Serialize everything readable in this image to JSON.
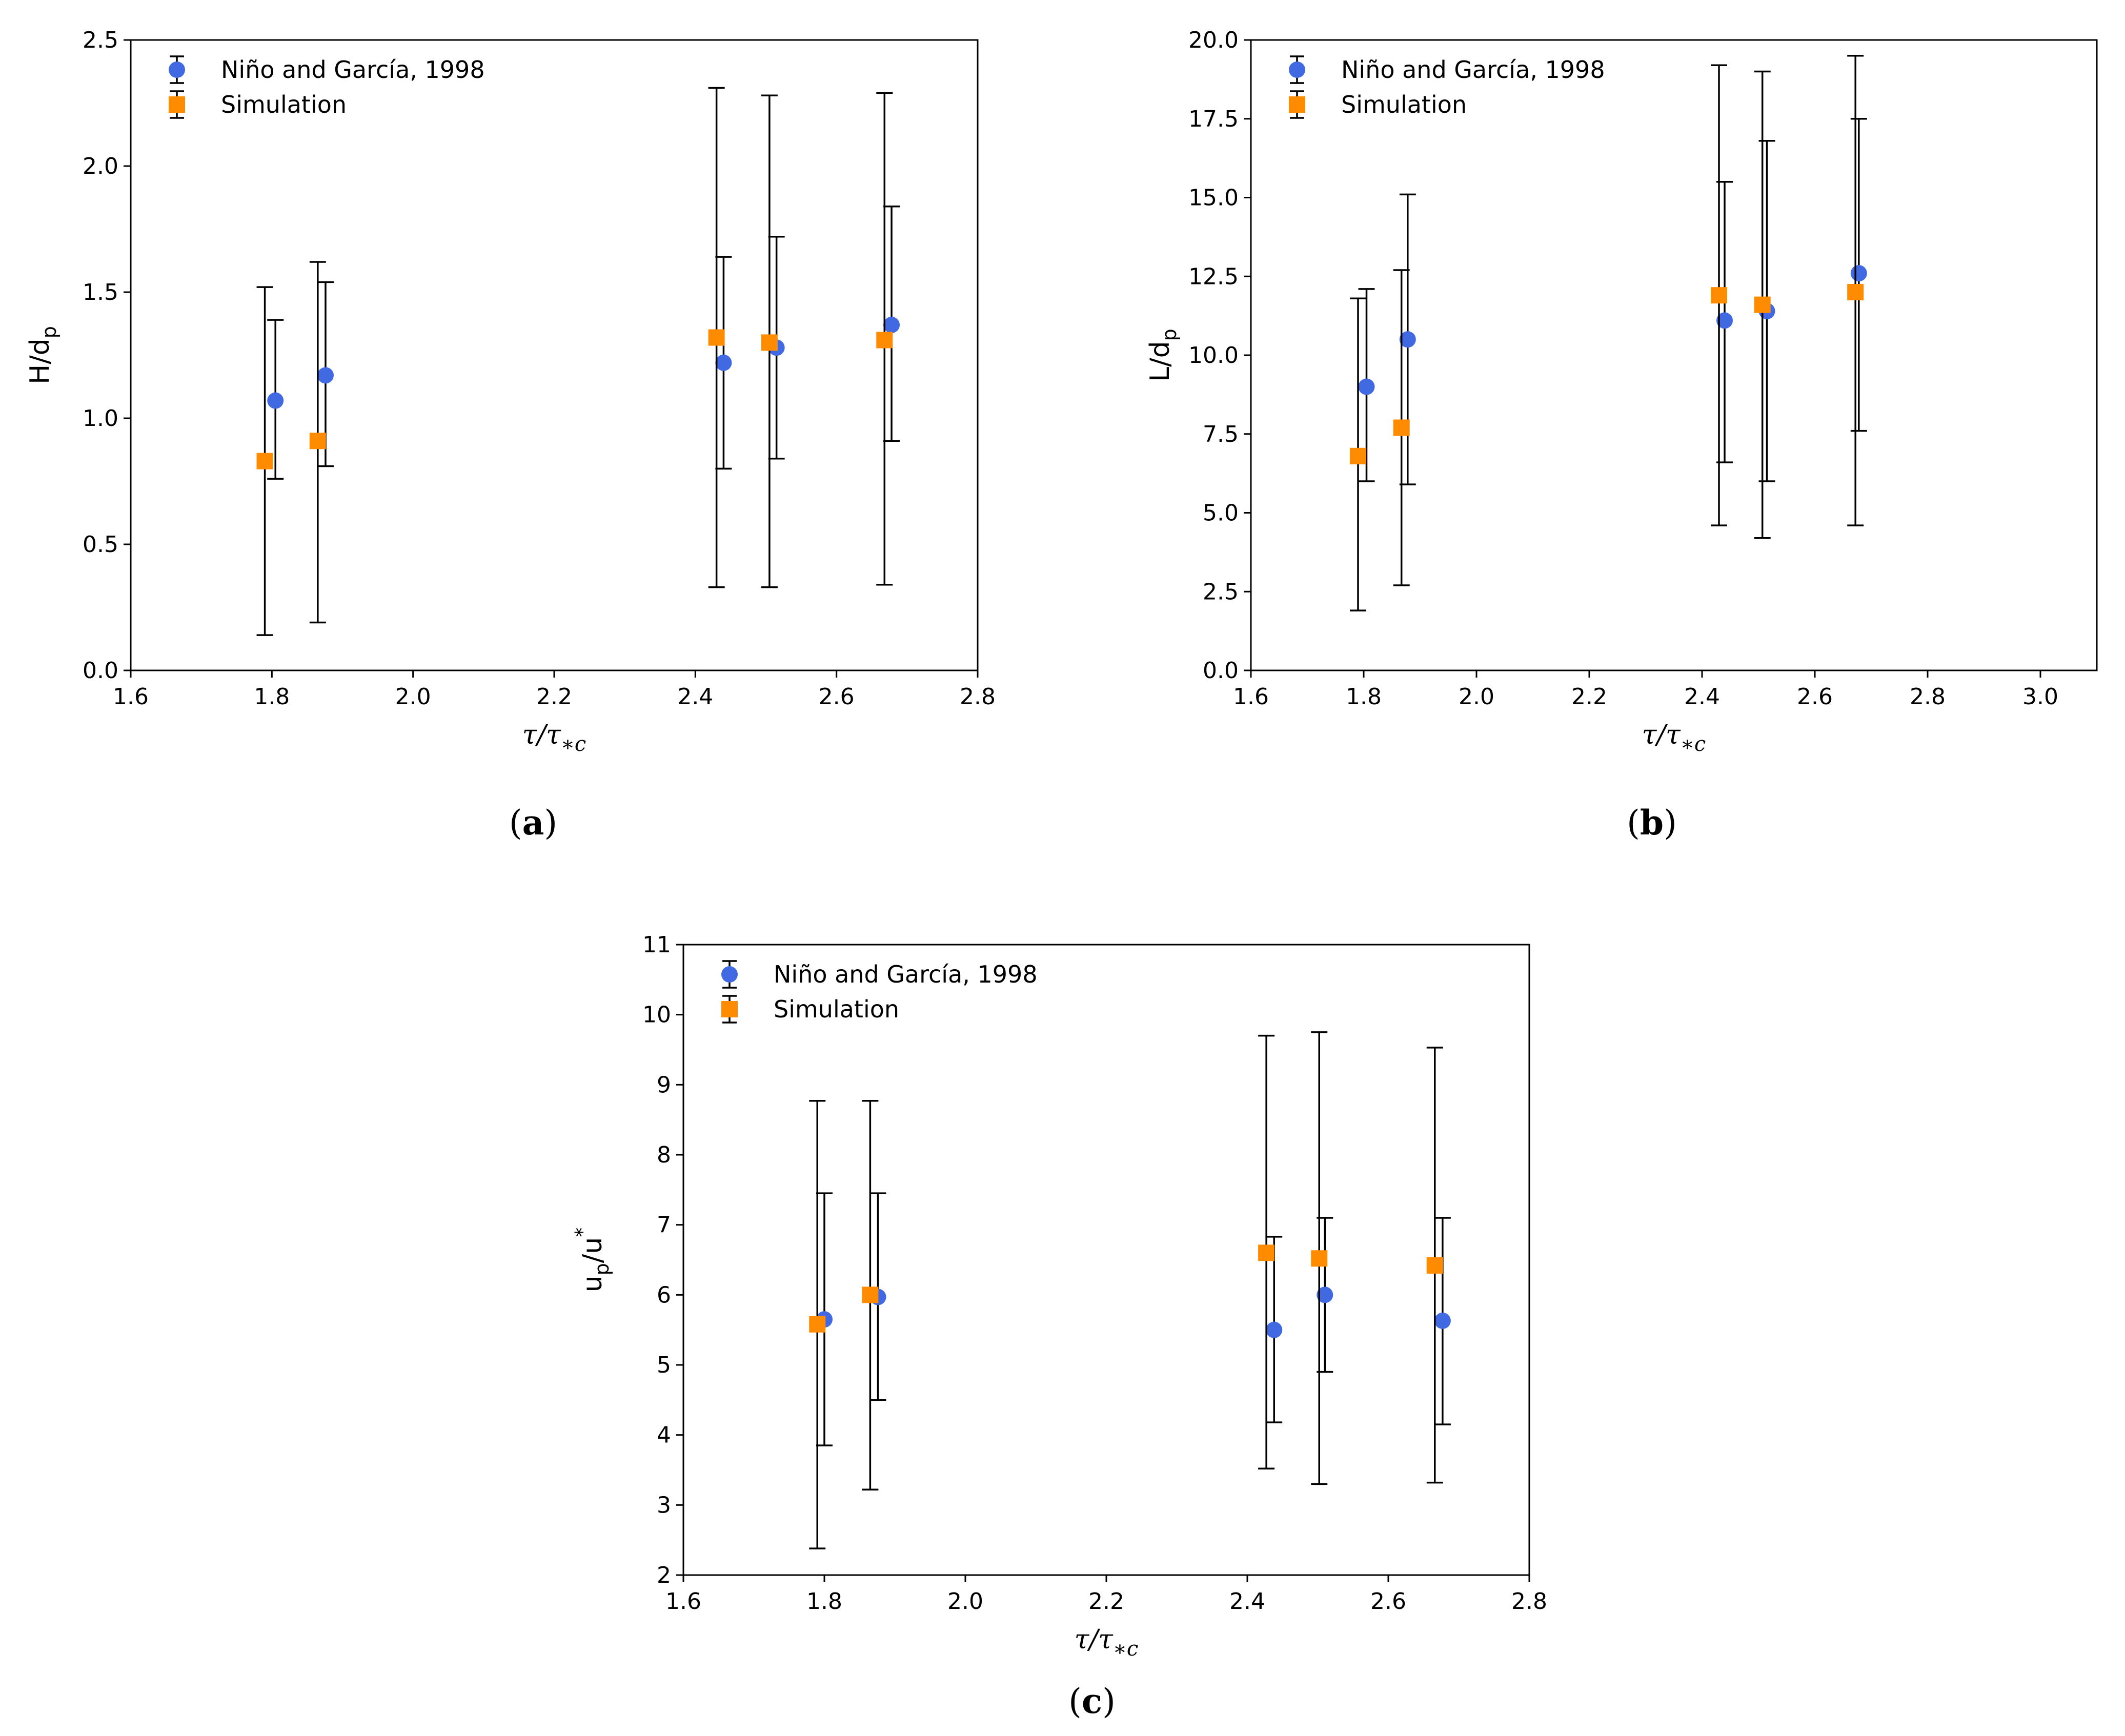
{
  "figure": {
    "colors": {
      "nino": "#4169E1",
      "simulation": "#FF8C00",
      "axis": "#000000",
      "errorbar": "#000000"
    }
  },
  "chart_data": [
    {
      "id": "a",
      "type": "scatter",
      "caption": {
        "open": "(",
        "letter": "a",
        "close": ")"
      },
      "xlabel": {
        "base": "τ/τ",
        "sub": "∗c"
      },
      "ylabel": {
        "base": "H/d",
        "sub": "p",
        "sup": ""
      },
      "xlim": [
        1.6,
        2.8
      ],
      "ylim": [
        0.0,
        2.5
      ],
      "xticks": [
        1.6,
        1.8,
        2.0,
        2.2,
        2.4,
        2.6,
        2.8
      ],
      "xtick_labels": [
        "1.6",
        "1.8",
        "2.0",
        "2.2",
        "2.4",
        "2.6",
        "2.8"
      ],
      "yticks": [
        0.0,
        0.5,
        1.0,
        1.5,
        2.0,
        2.5
      ],
      "ytick_labels": [
        "0.0",
        "0.5",
        "1.0",
        "1.5",
        "2.0",
        "2.5"
      ],
      "legend": {
        "position": "top-left",
        "entries": [
          "Niño and García, 1998",
          "Simulation"
        ]
      },
      "series": [
        {
          "name": "Niño and García, 1998",
          "marker": "circle",
          "x": [
            1.805,
            1.876,
            2.44,
            2.515,
            2.678
          ],
          "y": [
            1.07,
            1.17,
            1.22,
            1.28,
            1.37
          ],
          "err_low": [
            0.76,
            0.81,
            0.8,
            0.84,
            0.91
          ],
          "err_high": [
            1.39,
            1.54,
            1.64,
            1.72,
            1.84
          ]
        },
        {
          "name": "Simulation",
          "marker": "square",
          "x": [
            1.79,
            1.865,
            2.43,
            2.505,
            2.668
          ],
          "y": [
            0.83,
            0.91,
            1.32,
            1.3,
            1.31
          ],
          "err_low": [
            0.14,
            0.19,
            0.33,
            0.33,
            0.34
          ],
          "err_high": [
            1.52,
            1.62,
            2.31,
            2.28,
            2.29
          ]
        }
      ]
    },
    {
      "id": "b",
      "type": "scatter",
      "caption": {
        "open": "(",
        "letter": "b",
        "close": ")"
      },
      "xlabel": {
        "base": "τ/τ",
        "sub": "∗c"
      },
      "ylabel": {
        "base": "L/d",
        "sub": "p",
        "sup": ""
      },
      "xlim": [
        1.6,
        3.1
      ],
      "ylim": [
        0.0,
        20.0
      ],
      "xticks": [
        1.6,
        1.8,
        2.0,
        2.2,
        2.4,
        2.6,
        2.8,
        3.0
      ],
      "xtick_labels": [
        "1.6",
        "1.8",
        "2.0",
        "2.2",
        "2.4",
        "2.6",
        "2.8",
        "3.0"
      ],
      "yticks": [
        0.0,
        2.5,
        5.0,
        7.5,
        10.0,
        12.5,
        15.0,
        17.5,
        20.0
      ],
      "ytick_labels": [
        "0.0",
        "2.5",
        "5.0",
        "7.5",
        "10.0",
        "12.5",
        "15.0",
        "17.5",
        "20.0"
      ],
      "legend": {
        "position": "top-left",
        "entries": [
          "Niño and García, 1998",
          "Simulation"
        ]
      },
      "series": [
        {
          "name": "Niño and García, 1998",
          "marker": "circle",
          "x": [
            1.805,
            1.878,
            2.44,
            2.515,
            2.678
          ],
          "y": [
            9.0,
            10.5,
            11.1,
            11.4,
            12.6
          ],
          "err_low": [
            6.0,
            5.9,
            6.6,
            6.0,
            7.6
          ],
          "err_high": [
            12.1,
            15.1,
            15.5,
            16.8,
            17.5
          ]
        },
        {
          "name": "Simulation",
          "marker": "square",
          "x": [
            1.79,
            1.867,
            2.43,
            2.507,
            2.672
          ],
          "y": [
            6.8,
            7.7,
            11.9,
            11.6,
            12.0
          ],
          "err_low": [
            1.9,
            2.7,
            4.6,
            4.2,
            4.6
          ],
          "err_high": [
            11.8,
            12.7,
            19.2,
            19.0,
            19.5
          ]
        }
      ]
    },
    {
      "id": "c",
      "type": "scatter",
      "caption": {
        "open": "(",
        "letter": "c",
        "close": ")"
      },
      "xlabel": {
        "base": "τ/τ",
        "sub": "∗c"
      },
      "ylabel": {
        "base": "u",
        "sub": "p",
        "mid": "/u",
        "sup": "*"
      },
      "xlim": [
        1.6,
        2.8
      ],
      "ylim": [
        2,
        11
      ],
      "xticks": [
        1.6,
        1.8,
        2.0,
        2.2,
        2.4,
        2.6,
        2.8
      ],
      "xtick_labels": [
        "1.6",
        "1.8",
        "2.0",
        "2.2",
        "2.4",
        "2.6",
        "2.8"
      ],
      "yticks": [
        2,
        3,
        4,
        5,
        6,
        7,
        8,
        9,
        10,
        11
      ],
      "ytick_labels": [
        "2",
        "3",
        "4",
        "5",
        "6",
        "7",
        "8",
        "9",
        "10",
        "11"
      ],
      "legend": {
        "position": "top-left",
        "entries": [
          "Niño and García, 1998",
          "Simulation"
        ]
      },
      "series": [
        {
          "name": "Niño and García, 1998",
          "marker": "circle",
          "x": [
            1.8,
            1.876,
            2.438,
            2.51,
            2.677
          ],
          "y": [
            5.65,
            5.97,
            5.5,
            6.0,
            5.63
          ],
          "err_low": [
            3.85,
            4.5,
            4.18,
            4.9,
            4.15
          ],
          "err_high": [
            7.45,
            7.45,
            6.83,
            7.1,
            7.1
          ]
        },
        {
          "name": "Simulation",
          "marker": "square",
          "x": [
            1.79,
            1.865,
            2.427,
            2.502,
            2.666
          ],
          "y": [
            5.58,
            6.0,
            6.6,
            6.52,
            6.42
          ],
          "err_low": [
            2.38,
            3.22,
            3.52,
            3.3,
            3.32
          ],
          "err_high": [
            8.77,
            8.77,
            9.7,
            9.75,
            9.53
          ]
        }
      ]
    }
  ]
}
